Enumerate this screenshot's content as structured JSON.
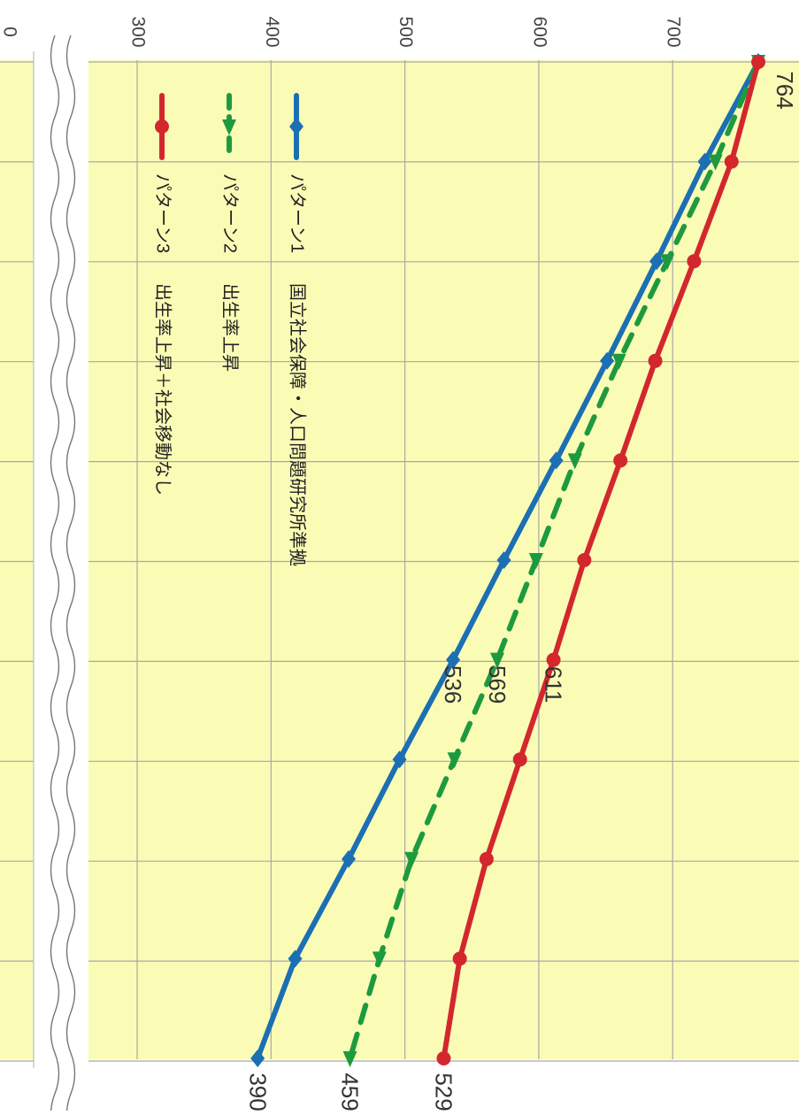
{
  "chart_data": {
    "type": "line",
    "orientation": "rotated 90° clockwise (value axis runs across the top, categories run downward)",
    "value_axis": {
      "ticks": [
        0,
        300,
        400,
        500,
        600,
        700
      ],
      "tick_labels": [
        "0",
        "300",
        "400",
        "500",
        "600",
        "700"
      ],
      "axis_break": "between 0 and 300",
      "ylim": [
        300,
        800
      ]
    },
    "categories": [
      "1",
      "2",
      "3",
      "4",
      "5",
      "6",
      "7",
      "8",
      "9",
      "10",
      "11"
    ],
    "category_labels_shown": false,
    "series": [
      {
        "name": "パターン1",
        "description": "国立社会保障・人口問題研究所準拠",
        "color": "#1c6fb3",
        "style": "solid",
        "marker": "diamond",
        "values": [
          764,
          724,
          688,
          651,
          613,
          574,
          536,
          496,
          458,
          418,
          390
        ],
        "labels": [
          "",
          "",
          "",
          "",
          "",
          "",
          "536",
          "",
          "",
          "",
          "390"
        ]
      },
      {
        "name": "パターン2",
        "description": "出生率上昇",
        "color": "#1e9a3e",
        "style": "dashed",
        "marker": "triangle",
        "values": [
          764,
          732,
          696,
          660,
          627,
          598,
          569,
          537,
          505,
          481,
          459
        ],
        "labels": [
          "",
          "",
          "",
          "",
          "",
          "",
          "569",
          "",
          "",
          "",
          "459"
        ]
      },
      {
        "name": "パターン3",
        "description": "出生率上昇＋社会移動なし",
        "color": "#d3272d",
        "style": "solid",
        "marker": "circle",
        "values": [
          764,
          744,
          716,
          687,
          661,
          634,
          611,
          586,
          561,
          541,
          529
        ],
        "labels": [
          "",
          "",
          "",
          "",
          "",
          "",
          "611",
          "",
          "",
          "",
          "529"
        ]
      }
    ],
    "first_point_label": "764",
    "legend": {
      "placement": "top-left of plot area, rotated",
      "entries": [
        {
          "name": "パターン1",
          "text": "国立社会保障・人口問題研究所準拠"
        },
        {
          "name": "パターン2",
          "text": "出生率上昇"
        },
        {
          "name": "パターン3",
          "text": "出生率上昇＋社会移動なし"
        }
      ]
    },
    "grid": true,
    "background_color": "#fafcb6"
  }
}
